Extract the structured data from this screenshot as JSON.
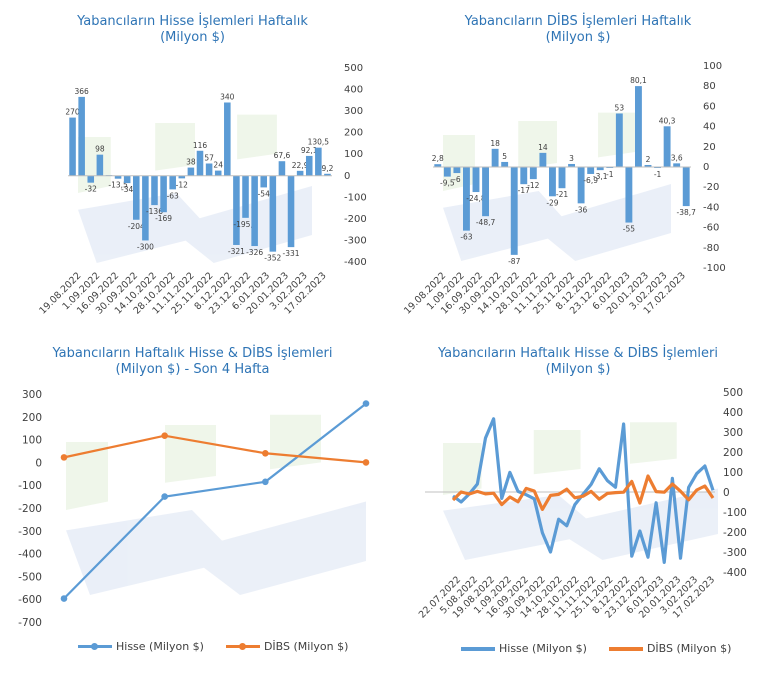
{
  "colors": {
    "blue": "#5b9bd5",
    "orange": "#ed7d31",
    "title": "#2e74b5",
    "text": "#404040"
  },
  "chart_data": [
    {
      "type": "bar",
      "title_lines": [
        "Yabancıların Hisse İşlemleri Haftalık",
        "(Milyon $)"
      ],
      "ylim": [
        -400,
        500
      ],
      "yticks": [
        500,
        400,
        300,
        200,
        100,
        0,
        -100,
        -200,
        -300,
        -400
      ],
      "x_tick_labels": [
        "19.08.2022",
        "1.09.2022",
        "16.09.2022",
        "30.09.2022",
        "14.10.2022",
        "28.10.2022",
        "11.11.2022",
        "25.11.2022",
        "8.12.2022",
        "23.12.2022",
        "6.01.2023",
        "20.01.2023",
        "3.02.2023",
        "17.02.2023"
      ],
      "values": [
        270,
        366,
        -32,
        98,
        3,
        -13.5,
        -34,
        -204,
        -300,
        -136,
        -169,
        -63,
        -12,
        38,
        116,
        57,
        24,
        340,
        -321,
        -195.1,
        -326,
        -54,
        -352,
        67.6,
        -331,
        22.9,
        92.1,
        130.5,
        9.2
      ],
      "labels": [
        "270",
        "366",
        "-32",
        "98",
        "",
        "-13,5",
        "-34",
        "-204",
        "-300",
        "-136",
        "-169",
        "-63",
        "-12",
        "38",
        "116",
        "57",
        "24",
        "340",
        "-321",
        "-195,1",
        "-326",
        "-54",
        "-352",
        "67,6",
        "-331",
        "22,9",
        "92,1",
        "130,5",
        "9,2"
      ]
    },
    {
      "type": "bar",
      "title_lines": [
        "Yabancıların  DİBS İşlemleri Haftalık",
        "(Milyon $)"
      ],
      "ylim": [
        -100,
        100
      ],
      "yticks": [
        100,
        80,
        60,
        40,
        20,
        0,
        -20,
        -40,
        -60,
        -80,
        -100
      ],
      "x_tick_labels": [
        "19.08.2022",
        "1.09.2022",
        "16.09.2022",
        "30.09.2022",
        "14.10.2022",
        "28.10.2022",
        "11.11.2022",
        "25.11.2022",
        "8.12.2022",
        "23.12.2022",
        "6.01.2023",
        "20.01.2023",
        "3.02.2023",
        "17.02.2023"
      ],
      "values": [
        2.8,
        -9.5,
        -6,
        -63,
        -24.8,
        -48.7,
        18,
        5,
        -87,
        -17,
        -12,
        14,
        -29,
        -21,
        3,
        -36,
        -6.9,
        -3.1,
        -1,
        53,
        -55,
        80.1,
        2,
        -1,
        40.3,
        3.6,
        -38.7
      ],
      "labels": [
        "2,8",
        "-9,5",
        "-6",
        "-63",
        "-24,8",
        "-48,7",
        "18",
        "5",
        "-87",
        "-17",
        "-12",
        "14",
        "-29",
        "-21",
        "3",
        "-36",
        "-6,9",
        "-3,1",
        "-1",
        "53",
        "-55",
        "80,1",
        "2",
        "-1",
        "40,3",
        "3,6",
        "-38,7"
      ]
    },
    {
      "type": "line",
      "title_lines": [
        "Yabancıların  Haftalık Hisse & DİBS İşlemleri",
        "(Milyon $) - Son 4 Hafta"
      ],
      "ylim": [
        -700,
        300
      ],
      "yticks": [
        300,
        200,
        100,
        0,
        -100,
        -200,
        -300,
        -400,
        -500,
        -600,
        -700
      ],
      "series": [
        {
          "name": "Hisse (Milyon $)",
          "values": [
            -597,
            -150,
            -85,
            258
          ]
        },
        {
          "name": "DİBS (Milyon $)",
          "values": [
            22,
            117,
            40,
            0
          ]
        }
      ]
    },
    {
      "type": "line",
      "title_lines": [
        "Yabancıların Haftalık Hisse & DİBS İşlemleri",
        "(Milyon $)"
      ],
      "ylim": [
        -400,
        500
      ],
      "yticks": [
        500,
        400,
        300,
        200,
        100,
        0,
        -100,
        -200,
        -300,
        -400
      ],
      "x_tick_labels": [
        "22.07.2022",
        "5.08.2022",
        "19.08.2022",
        "1.09.2022",
        "16.09.2022",
        "30.09.2022",
        "14.10.2022",
        "28.10.2022",
        "11.11.2022",
        "25.11.2022",
        "8.12.2022",
        "23.12.2022",
        "6.01.2023",
        "20.01.2023",
        "3.02.2023",
        "17.02.2023"
      ],
      "series": [
        {
          "name": "Hisse (Milyon $)",
          "values": [
            -20,
            -50,
            -10,
            40,
            270,
            366,
            -32,
            98,
            3,
            -13.5,
            -34,
            -204,
            -300,
            -136,
            -169,
            -63,
            -12,
            38,
            116,
            57,
            24,
            340,
            -321,
            -195,
            -326,
            -54,
            -352,
            68,
            -331,
            23,
            92,
            130,
            9
          ]
        },
        {
          "name": "DİBS (Milyon $)",
          "values": [
            -40,
            0,
            -10,
            3,
            -9.5,
            -6,
            -63,
            -25,
            -49,
            18,
            5,
            -87,
            -17,
            -12,
            14,
            -29,
            -21,
            3,
            -36,
            -7,
            -3,
            -1,
            53,
            -55,
            80,
            2,
            -1,
            40,
            4,
            -39,
            10,
            30,
            -30
          ]
        }
      ]
    }
  ]
}
